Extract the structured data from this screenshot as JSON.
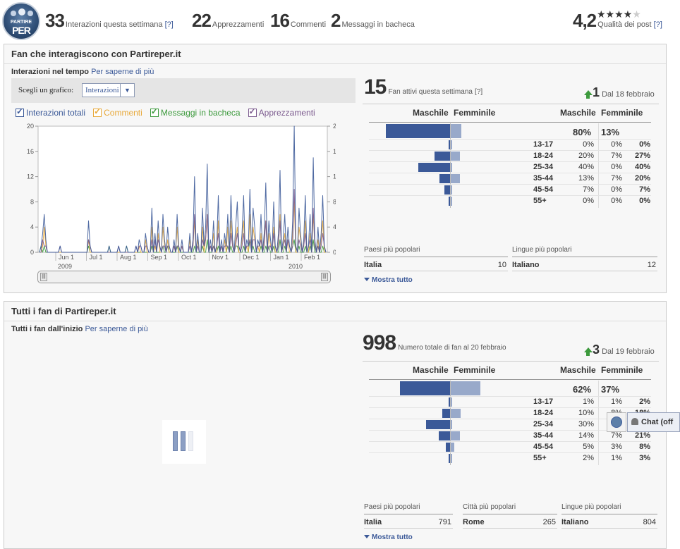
{
  "top": {
    "logo": {
      "line1": "PARTIRE",
      "line2": "PER"
    },
    "stats": [
      {
        "value": "33",
        "label": "Interazioni questa settimana",
        "help": "[?]"
      },
      {
        "value": "22",
        "label": "Apprezzamenti"
      },
      {
        "value": "16",
        "label": "Commenti"
      },
      {
        "value": "2",
        "label": "Messaggi in bacheca"
      }
    ],
    "quality": {
      "value": "4,2",
      "label": "Qualità dei post",
      "help": "[?]",
      "stars_filled": 4,
      "stars_total": 5,
      "stars_glyph_on": "★★★★",
      "stars_glyph_off": "★"
    }
  },
  "panel1": {
    "title": "Fan che interagiscono con Partireper.it",
    "subtitle": "Interazioni nel tempo",
    "more_link": "Per saperne di più",
    "chooser_label": "Scegli un grafico:",
    "chooser_value": "Interazioni",
    "legend": [
      {
        "label": "Interazioni totali",
        "color": "#3b5998"
      },
      {
        "label": "Commenti",
        "color": "#e8a93a"
      },
      {
        "label": "Messaggi in bacheca",
        "color": "#3d9a3d"
      },
      {
        "label": "Apprezzamenti",
        "color": "#7b5a8e"
      }
    ],
    "active_fans": {
      "value": "15",
      "label": "Fan attivi questa settimana",
      "help": "[?]"
    },
    "trend": {
      "value": "1",
      "label": "Dal 18 febbraio"
    },
    "demo": {
      "head_m": "Maschile",
      "head_f": "Femminile",
      "head_m2": "Maschile",
      "head_f2": "Femminile",
      "total_m": "80%",
      "total_f": "13%",
      "rows": [
        {
          "age": "13-17",
          "m": "0%",
          "f": "0%",
          "t": "0%"
        },
        {
          "age": "18-24",
          "m": "20%",
          "f": "7%",
          "t": "27%"
        },
        {
          "age": "25-34",
          "m": "40%",
          "f": "0%",
          "t": "40%"
        },
        {
          "age": "35-44",
          "m": "13%",
          "f": "7%",
          "t": "20%"
        },
        {
          "age": "45-54",
          "m": "7%",
          "f": "0%",
          "t": "7%"
        },
        {
          "age": "55+",
          "m": "0%",
          "f": "0%",
          "t": "0%"
        }
      ]
    },
    "popular": [
      {
        "header": "Paesi più popolari",
        "name": "Italia",
        "count": "10"
      },
      {
        "header": "Lingue più popolari",
        "name": "Italiano",
        "count": "12"
      }
    ],
    "show_all": "Mostra tutto"
  },
  "panel2": {
    "title": "Tutti i fan di Partireper.it",
    "subtitle": "Tutti i fan dall'inizio",
    "more_link": "Per saperne di più",
    "total_fans": {
      "value": "998",
      "label": "Numero totale di fan al 20 febbraio"
    },
    "trend": {
      "value": "3",
      "label": "Dal 19 febbraio"
    },
    "demo": {
      "head_m": "Maschile",
      "head_f": "Femminile",
      "head_m2": "Maschile",
      "head_f2": "Femminile",
      "total_m": "62%",
      "total_f": "37%",
      "rows": [
        {
          "age": "13-17",
          "m": "1%",
          "f": "1%",
          "t": "2%"
        },
        {
          "age": "18-24",
          "m": "10%",
          "f": "8%",
          "t": "18%"
        },
        {
          "age": "25-34",
          "m": "30%",
          "f": "",
          "t": ""
        },
        {
          "age": "35-44",
          "m": "14%",
          "f": "7%",
          "t": "21%"
        },
        {
          "age": "45-54",
          "m": "5%",
          "f": "3%",
          "t": "8%"
        },
        {
          "age": "55+",
          "m": "2%",
          "f": "1%",
          "t": "3%"
        }
      ]
    },
    "popular": [
      {
        "header": "Paesi più popolari",
        "name": "Italia",
        "count": "791"
      },
      {
        "header": "Città più popolari",
        "name": "Rome",
        "count": "265"
      },
      {
        "header": "Lingue più popolari",
        "name": "Italiano",
        "count": "804"
      }
    ],
    "show_all": "Mostra tutto"
  },
  "chat": {
    "label": "Chat (off"
  },
  "chart_data": {
    "type": "line",
    "title": "",
    "x_tick_labels": [
      "Jun 1",
      "Jul 1",
      "Aug 1",
      "Sep 1",
      "Oct 1",
      "Nov 1",
      "Dec 1",
      "Jan 1",
      "Feb 1"
    ],
    "year_labels": [
      "2009",
      "2010"
    ],
    "y_ticks": [
      0,
      4,
      8,
      12,
      16,
      20
    ],
    "ylim": [
      0,
      20
    ],
    "grid": false,
    "series": [
      {
        "name": "Interazioni totali",
        "color": "#3b5998",
        "values": [
          0,
          1,
          3,
          6,
          2,
          0,
          0,
          0,
          0,
          0,
          0,
          0,
          0,
          1,
          0,
          0,
          0,
          0,
          0,
          0,
          0,
          0,
          0,
          0,
          0,
          0,
          0,
          0,
          0,
          0,
          0,
          5,
          1,
          0,
          0,
          0,
          0,
          0,
          0,
          0,
          0,
          0,
          0,
          0,
          1,
          0,
          0,
          0,
          0,
          0,
          1,
          0,
          0,
          0,
          0,
          1,
          0,
          0,
          0,
          0,
          0,
          1,
          0,
          2,
          1,
          0,
          0,
          3,
          1,
          0,
          0,
          7,
          0,
          3,
          0,
          5,
          1,
          0,
          6,
          2,
          0,
          4,
          1,
          0,
          0,
          2,
          0,
          6,
          1,
          0,
          2,
          0,
          0,
          0,
          0,
          3,
          0,
          2,
          12,
          0,
          3,
          0,
          0,
          7,
          1,
          4,
          14,
          0,
          2,
          0,
          5,
          0,
          1,
          9,
          0,
          2,
          0,
          3,
          1,
          6,
          0,
          9,
          2,
          0,
          4,
          8,
          1,
          0,
          3,
          9,
          0,
          2,
          1,
          10,
          0,
          7,
          4,
          0,
          2,
          1,
          6,
          0,
          3,
          11,
          0,
          5,
          2,
          0,
          8,
          1,
          0,
          3,
          13,
          0,
          2,
          6,
          0,
          4,
          1,
          0,
          5,
          20,
          1,
          0,
          7,
          3,
          0,
          2,
          9,
          0,
          1,
          6,
          0,
          15,
          2,
          0,
          4,
          0,
          3,
          9,
          1,
          0
        ]
      },
      {
        "name": "Commenti",
        "color": "#e8a93a",
        "values": [
          0,
          0,
          1,
          4,
          1,
          0,
          0,
          0,
          0,
          0,
          0,
          0,
          0,
          0,
          0,
          0,
          0,
          0,
          0,
          0,
          0,
          0,
          0,
          0,
          0,
          0,
          0,
          0,
          0,
          0,
          0,
          2,
          0,
          0,
          0,
          0,
          0,
          0,
          0,
          0,
          0,
          0,
          0,
          0,
          0,
          0,
          0,
          0,
          0,
          0,
          0,
          0,
          0,
          0,
          0,
          0,
          0,
          0,
          0,
          0,
          0,
          0,
          0,
          1,
          0,
          0,
          0,
          2,
          0,
          0,
          0,
          4,
          0,
          1,
          0,
          3,
          0,
          0,
          4,
          1,
          0,
          2,
          0,
          0,
          0,
          1,
          0,
          4,
          0,
          0,
          1,
          0,
          0,
          0,
          0,
          2,
          0,
          1,
          5,
          0,
          2,
          0,
          0,
          4,
          0,
          2,
          6,
          0,
          1,
          0,
          3,
          0,
          0,
          5,
          0,
          1,
          0,
          2,
          0,
          4,
          0,
          5,
          1,
          0,
          2,
          4,
          0,
          0,
          2,
          5,
          0,
          1,
          0,
          6,
          0,
          4,
          2,
          0,
          1,
          0,
          3,
          0,
          2,
          5,
          0,
          3,
          1,
          0,
          4,
          0,
          0,
          2,
          6,
          0,
          1,
          3,
          0,
          2,
          0,
          0,
          3,
          8,
          0,
          0,
          4,
          2,
          0,
          1,
          5,
          0,
          0,
          3,
          0,
          6,
          1,
          0,
          2,
          0,
          2,
          5,
          0,
          0
        ]
      },
      {
        "name": "Messaggi in bacheca",
        "color": "#3d9a3d",
        "values": [
          0,
          1,
          0,
          1,
          0,
          0,
          0,
          0,
          0,
          0,
          0,
          0,
          0,
          0,
          0,
          0,
          0,
          0,
          0,
          0,
          0,
          0,
          0,
          0,
          0,
          0,
          0,
          0,
          0,
          0,
          0,
          1,
          0,
          0,
          0,
          0,
          0,
          0,
          0,
          0,
          0,
          0,
          0,
          0,
          1,
          0,
          0,
          0,
          0,
          0,
          0,
          0,
          0,
          0,
          0,
          1,
          0,
          0,
          0,
          0,
          0,
          0,
          0,
          0,
          0,
          0,
          0,
          0,
          0,
          0,
          0,
          1,
          0,
          0,
          0,
          0,
          0,
          0,
          1,
          0,
          0,
          1,
          0,
          0,
          0,
          0,
          0,
          1,
          0,
          0,
          0,
          0,
          0,
          0,
          0,
          0,
          0,
          0,
          1,
          0,
          0,
          0,
          0,
          1,
          0,
          0,
          2,
          0,
          0,
          0,
          1,
          0,
          0,
          1,
          0,
          0,
          0,
          0,
          0,
          1,
          0,
          1,
          0,
          0,
          1,
          1,
          0,
          0,
          0,
          1,
          0,
          0,
          0,
          2,
          0,
          1,
          0,
          0,
          0,
          0,
          1,
          0,
          0,
          1,
          0,
          1,
          0,
          0,
          1,
          0,
          0,
          0,
          2,
          0,
          0,
          1,
          0,
          0,
          0,
          0,
          1,
          2,
          0,
          0,
          1,
          0,
          0,
          0,
          1,
          0,
          0,
          1,
          0,
          2,
          0,
          0,
          1,
          0,
          0,
          1,
          0,
          0
        ]
      },
      {
        "name": "Apprezzamenti",
        "color": "#7b5a8e",
        "values": [
          0,
          0,
          2,
          1,
          1,
          0,
          0,
          0,
          0,
          0,
          0,
          0,
          0,
          1,
          0,
          0,
          0,
          0,
          0,
          0,
          0,
          0,
          0,
          0,
          0,
          0,
          0,
          0,
          0,
          0,
          0,
          2,
          1,
          0,
          0,
          0,
          0,
          0,
          0,
          0,
          0,
          0,
          0,
          0,
          0,
          0,
          0,
          0,
          0,
          0,
          1,
          0,
          0,
          0,
          0,
          0,
          0,
          0,
          0,
          0,
          0,
          1,
          0,
          1,
          1,
          0,
          0,
          1,
          1,
          0,
          0,
          2,
          0,
          2,
          0,
          2,
          1,
          0,
          1,
          1,
          0,
          1,
          1,
          0,
          0,
          1,
          0,
          1,
          1,
          0,
          1,
          0,
          0,
          0,
          0,
          1,
          0,
          1,
          6,
          0,
          1,
          0,
          0,
          2,
          1,
          2,
          6,
          0,
          1,
          0,
          1,
          0,
          1,
          3,
          0,
          1,
          0,
          1,
          1,
          1,
          0,
          3,
          1,
          0,
          1,
          3,
          1,
          0,
          1,
          3,
          0,
          1,
          1,
          2,
          0,
          2,
          2,
          0,
          1,
          1,
          2,
          0,
          1,
          5,
          0,
          1,
          1,
          0,
          3,
          1,
          0,
          1,
          5,
          0,
          1,
          2,
          0,
          2,
          1,
          0,
          1,
          10,
          1,
          0,
          2,
          1,
          0,
          1,
          3,
          0,
          1,
          2,
          0,
          7,
          1,
          0,
          1,
          0,
          1,
          3,
          1,
          0
        ]
      }
    ]
  }
}
